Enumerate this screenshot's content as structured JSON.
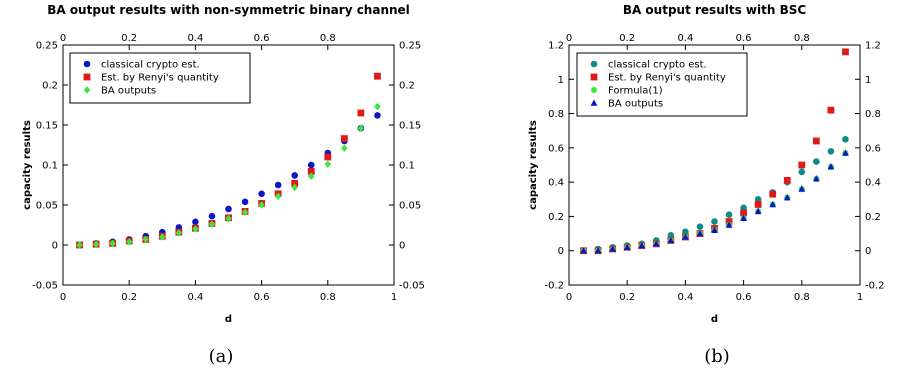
{
  "chart_data": [
    {
      "type": "scatter",
      "caption": "(a)",
      "title": "BA output results with non-symmetric binary channel",
      "xlabel": "d",
      "ylabel": "capacity results",
      "xlim": [
        0,
        1
      ],
      "ylim": [
        -0.05,
        0.25
      ],
      "xticks": [
        "0",
        "0.2",
        "0.4",
        "0.6",
        "0.8",
        "1"
      ],
      "xticks_top": [
        "0",
        "0.2",
        "0.4",
        "0.6",
        "0.8"
      ],
      "yticks": [
        "-0.05",
        "0",
        "0.05",
        "0.1",
        "0.15",
        "0.2",
        "0.25"
      ],
      "yticks_right": [
        "-0.05",
        "0",
        "0.05",
        "0.1",
        "0.15",
        "0.2",
        "0.25"
      ],
      "legend_position": "top-left",
      "x": [
        0.05,
        0.1,
        0.15,
        0.2,
        0.25,
        0.3,
        0.35,
        0.4,
        0.45,
        0.5,
        0.55,
        0.6,
        0.65,
        0.7,
        0.75,
        0.8,
        0.85,
        0.9,
        0.95
      ],
      "series": [
        {
          "name": "classical crypto est.",
          "marker": "circle",
          "color": "#0a14c8",
          "values": [
            0.0,
            0.002,
            0.004,
            0.007,
            0.011,
            0.016,
            0.022,
            0.029,
            0.036,
            0.045,
            0.054,
            0.064,
            0.075,
            0.087,
            0.1,
            0.115,
            0.13,
            0.146,
            0.162
          ]
        },
        {
          "name": "Est. by Renyi's quantity",
          "marker": "square",
          "color": "#e01818",
          "values": [
            0.0,
            0.001,
            0.002,
            0.005,
            0.007,
            0.011,
            0.016,
            0.021,
            0.027,
            0.034,
            0.042,
            0.052,
            0.064,
            0.077,
            0.092,
            0.11,
            0.133,
            0.165,
            0.211
          ]
        },
        {
          "name": "BA outputs",
          "marker": "diamond",
          "color": "#3ee63a",
          "values": [
            0.0,
            0.001,
            0.002,
            0.004,
            0.007,
            0.01,
            0.015,
            0.02,
            0.026,
            0.033,
            0.041,
            0.05,
            0.061,
            0.072,
            0.086,
            0.101,
            0.121,
            0.146,
            0.173
          ]
        }
      ]
    },
    {
      "type": "scatter",
      "caption": "(b)",
      "title": "BA output results with BSC",
      "xlabel": "d",
      "ylabel": "capacity results",
      "xlim": [
        0,
        1
      ],
      "ylim": [
        -0.2,
        1.2
      ],
      "xticks": [
        "0",
        "0.2",
        "0.4",
        "0.6",
        "0.8",
        "1"
      ],
      "xticks_top": [
        "0",
        "0.2",
        "0.4",
        "0.6",
        "0.8"
      ],
      "yticks": [
        "-0.2",
        "0",
        "0.2",
        "0.4",
        "0.6",
        "0.8",
        "1",
        "1.2"
      ],
      "yticks_right": [
        "-0.2",
        "0",
        "0.2",
        "0.4",
        "0.6",
        "0.8",
        "1",
        "1.2"
      ],
      "legend_position": "top-left",
      "x": [
        0.05,
        0.1,
        0.15,
        0.2,
        0.25,
        0.3,
        0.35,
        0.4,
        0.45,
        0.5,
        0.55,
        0.6,
        0.65,
        0.7,
        0.75,
        0.8,
        0.85,
        0.9,
        0.95
      ],
      "series": [
        {
          "name": "classical crypto est.",
          "marker": "circle",
          "color": "#0d8a8a",
          "values": [
            0.0,
            0.01,
            0.02,
            0.03,
            0.04,
            0.06,
            0.09,
            0.11,
            0.14,
            0.17,
            0.21,
            0.25,
            0.3,
            0.34,
            0.4,
            0.46,
            0.52,
            0.58,
            0.65
          ]
        },
        {
          "name": "Est. by Renyi's quantity",
          "marker": "square",
          "color": "#e01818",
          "values": [
            0.0,
            0.0,
            0.01,
            0.02,
            0.03,
            0.04,
            0.06,
            0.08,
            0.1,
            0.13,
            0.17,
            0.22,
            0.27,
            0.33,
            0.41,
            0.5,
            0.64,
            0.82,
            1.16
          ]
        },
        {
          "name": "Formula(1)",
          "marker": "star",
          "color": "#3ee63a",
          "values": [
            0.0,
            0.0,
            0.01,
            0.02,
            0.03,
            0.04,
            0.06,
            0.08,
            0.1,
            0.12,
            0.15,
            0.19,
            0.23,
            0.27,
            0.31,
            0.36,
            0.42,
            0.49,
            0.57
          ]
        },
        {
          "name": "BA outputs",
          "marker": "triangle",
          "color": "#0a14c8",
          "values": [
            0.0,
            0.0,
            0.01,
            0.02,
            0.03,
            0.04,
            0.06,
            0.08,
            0.1,
            0.12,
            0.15,
            0.19,
            0.23,
            0.27,
            0.31,
            0.36,
            0.42,
            0.49,
            0.57
          ]
        }
      ]
    }
  ]
}
